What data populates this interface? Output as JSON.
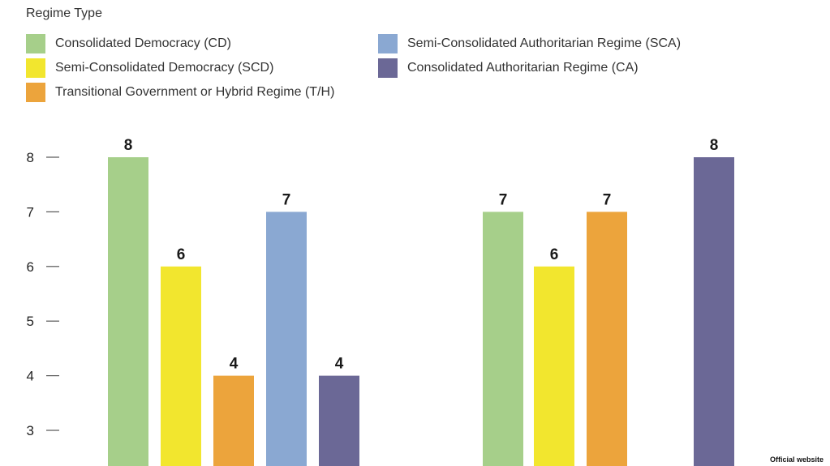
{
  "legend": {
    "title": "Regime Type",
    "items": [
      {
        "label": "Consolidated Democracy (CD)",
        "color": "#a6cf8a"
      },
      {
        "label": "Semi-Consolidated Democracy (SCD)",
        "color": "#f2e62e"
      },
      {
        "label": "Transitional Government or Hybrid Regime (T/H)",
        "color": "#eca43c"
      },
      {
        "label": "Semi-Consolidated Authoritarian Regime (SCA)",
        "color": "#8aa8d2"
      },
      {
        "label": "Consolidated Authoritarian Regime (CA)",
        "color": "#6b6896"
      }
    ]
  },
  "chart_data": {
    "type": "bar",
    "title": "",
    "xlabel": "",
    "ylabel": "",
    "ylim": [
      3,
      8
    ],
    "yticks": [
      3,
      4,
      5,
      6,
      7,
      8
    ],
    "grid": false,
    "legend_position": "top",
    "groups": [
      {
        "bars": [
          {
            "category": "CD",
            "value": 8,
            "label": "8"
          },
          {
            "category": "SCD",
            "value": 6,
            "label": "6"
          },
          {
            "category": "T/H",
            "value": 4,
            "label": "4"
          },
          {
            "category": "SCA",
            "value": 7,
            "label": "7"
          },
          {
            "category": "CA",
            "value": 4,
            "label": "4"
          }
        ]
      },
      {
        "bars": [
          {
            "category": "CD",
            "value": 7,
            "label": "7"
          },
          {
            "category": "SCD",
            "value": 6,
            "label": "6"
          },
          {
            "category": "T/H",
            "value": 7,
            "label": "7"
          },
          {
            "category": "CA",
            "value": 8,
            "label": "8"
          }
        ]
      }
    ]
  },
  "watermark": "Official website"
}
